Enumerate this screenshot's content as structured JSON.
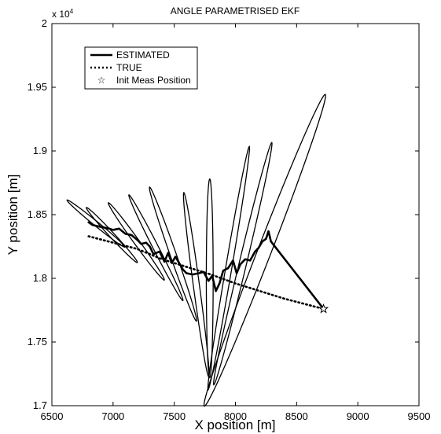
{
  "chart_data": {
    "type": "line",
    "title": "ANGLE PARAMETRISED EKF",
    "xlabel": "X position [m]",
    "ylabel": "Y position [m]",
    "y_exponent_label": "x 10",
    "y_exponent_power": "4",
    "xlim": [
      6500,
      9500
    ],
    "ylim": [
      17000,
      20000
    ],
    "grid": false,
    "legend_position": "top-left",
    "x_ticks": [
      6500,
      7000,
      7500,
      8000,
      8500,
      9000,
      9500
    ],
    "x_tick_labels": [
      "6500",
      "7000",
      "7500",
      "8000",
      "8500",
      "9000",
      "9500"
    ],
    "y_ticks": [
      17000,
      17500,
      18000,
      18500,
      19000,
      19500,
      20000
    ],
    "y_tick_labels": [
      "1.7",
      "1.75",
      "1.8",
      "1.85",
      "1.9",
      "1.95",
      "2"
    ],
    "series": [
      {
        "name": "ESTIMATED",
        "style": "solid",
        "color": "#000000",
        "x": [
          6800,
          6830,
          6870,
          6920,
          6970,
          7000,
          7050,
          7100,
          7150,
          7200,
          7230,
          7270,
          7300,
          7330,
          7380,
          7420,
          7450,
          7480,
          7510,
          7540,
          7570,
          7600,
          7650,
          7700,
          7740,
          7780,
          7810,
          7840,
          7870,
          7900,
          7940,
          7980,
          8010,
          8040,
          8080,
          8120,
          8160,
          8190,
          8220,
          8250,
          8270,
          8290,
          8720
        ],
        "y": [
          18440,
          18420,
          18410,
          18400,
          18390,
          18380,
          18390,
          18350,
          18340,
          18300,
          18270,
          18280,
          18250,
          18190,
          18210,
          18130,
          18200,
          18120,
          18170,
          18120,
          18070,
          18040,
          18030,
          18040,
          18050,
          17980,
          18020,
          17900,
          17960,
          18060,
          18080,
          18140,
          18040,
          18110,
          18150,
          18140,
          18210,
          18240,
          18290,
          18310,
          18370,
          18290,
          17760
        ]
      },
      {
        "name": "TRUE",
        "style": "dotted",
        "color": "#000000",
        "x": [
          6800,
          7000,
          7200,
          7400,
          7600,
          7700,
          7800,
          8000,
          8200,
          8400,
          8600,
          8720
        ],
        "y": [
          18330,
          18280,
          18230,
          18150,
          18090,
          18060,
          18030,
          17960,
          17900,
          17840,
          17790,
          17760
        ]
      },
      {
        "name": "Init Meas Position",
        "style": "marker-star",
        "color": "#000000",
        "x": [
          8720
        ],
        "y": [
          17760
        ]
      }
    ],
    "uncertainty_ellipses": [
      {
        "cx": 6860,
        "cy": 18430,
        "rx": 300,
        "ry": 18,
        "angle": -38
      },
      {
        "cx": 6990,
        "cy": 18340,
        "rx": 300,
        "ry": 20,
        "angle": -46
      },
      {
        "cx": 7190,
        "cy": 18290,
        "rx": 380,
        "ry": 22,
        "angle": -53
      },
      {
        "cx": 7350,
        "cy": 18240,
        "rx": 470,
        "ry": 22,
        "angle": -62
      },
      {
        "cx": 7490,
        "cy": 18190,
        "rx": 560,
        "ry": 25,
        "angle": -70
      },
      {
        "cx": 7680,
        "cy": 17950,
        "rx": 730,
        "ry": 25,
        "angle": -82
      },
      {
        "cx": 7790,
        "cy": 18000,
        "rx": 780,
        "ry": 28,
        "angle": -90
      },
      {
        "cx": 7945,
        "cy": 18080,
        "rx": 970,
        "ry": 25,
        "angle": -100
      },
      {
        "cx": 8060,
        "cy": 18115,
        "rx": 980,
        "ry": 30,
        "angle": -104
      },
      {
        "cx": 8240,
        "cy": 18220,
        "rx": 1320,
        "ry": 55,
        "angle": -112
      }
    ],
    "legend": [
      {
        "label": "ESTIMATED",
        "style": "solid"
      },
      {
        "label": "TRUE",
        "style": "dotted"
      },
      {
        "label": "Init Meas Position",
        "style": "marker-star"
      }
    ]
  }
}
